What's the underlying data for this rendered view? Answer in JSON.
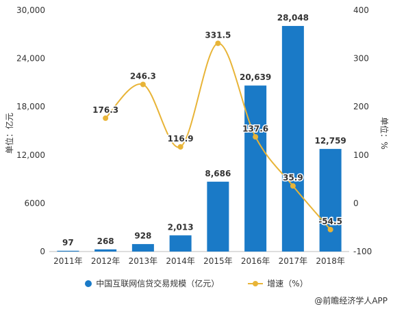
{
  "chart_data": {
    "type": "bar",
    "categories": [
      "2011年",
      "2012年",
      "2013年",
      "2014年",
      "2015年",
      "2016年",
      "2017年",
      "2018年"
    ],
    "series": [
      {
        "name": "中国互联网信贷交易规模（亿元）",
        "type": "bar",
        "axis": "left",
        "values": [
          97,
          268,
          928,
          2013,
          8686,
          20639,
          28048,
          12759
        ],
        "labels": [
          "97",
          "268",
          "928",
          "2,013",
          "8,686",
          "20,639",
          "28,048",
          "12,759"
        ]
      },
      {
        "name": "增速（%）",
        "type": "line",
        "axis": "right",
        "values": [
          null,
          176.3,
          246.3,
          116.9,
          331.5,
          137.6,
          35.9,
          -54.5
        ],
        "labels": [
          "",
          "176.3",
          "246.3",
          "116.9",
          "331.5",
          "137.6",
          "35.9",
          "-54.5"
        ]
      }
    ],
    "ylabel": "单位：亿元",
    "y2label": "单位：%",
    "ylim": [
      0,
      30000
    ],
    "y2lim": [
      -100,
      400
    ],
    "yticks": [
      "0",
      "6000",
      "12,000",
      "18,000",
      "24,000",
      "30,000"
    ],
    "y2ticks": [
      "-100",
      "0",
      "100",
      "200",
      "300",
      "400"
    ],
    "legend_position": "bottom",
    "grid": false,
    "colors": {
      "bar": "#1a7ac7",
      "line": "#e8b437"
    }
  },
  "source": "@前瞻经济学人APP"
}
